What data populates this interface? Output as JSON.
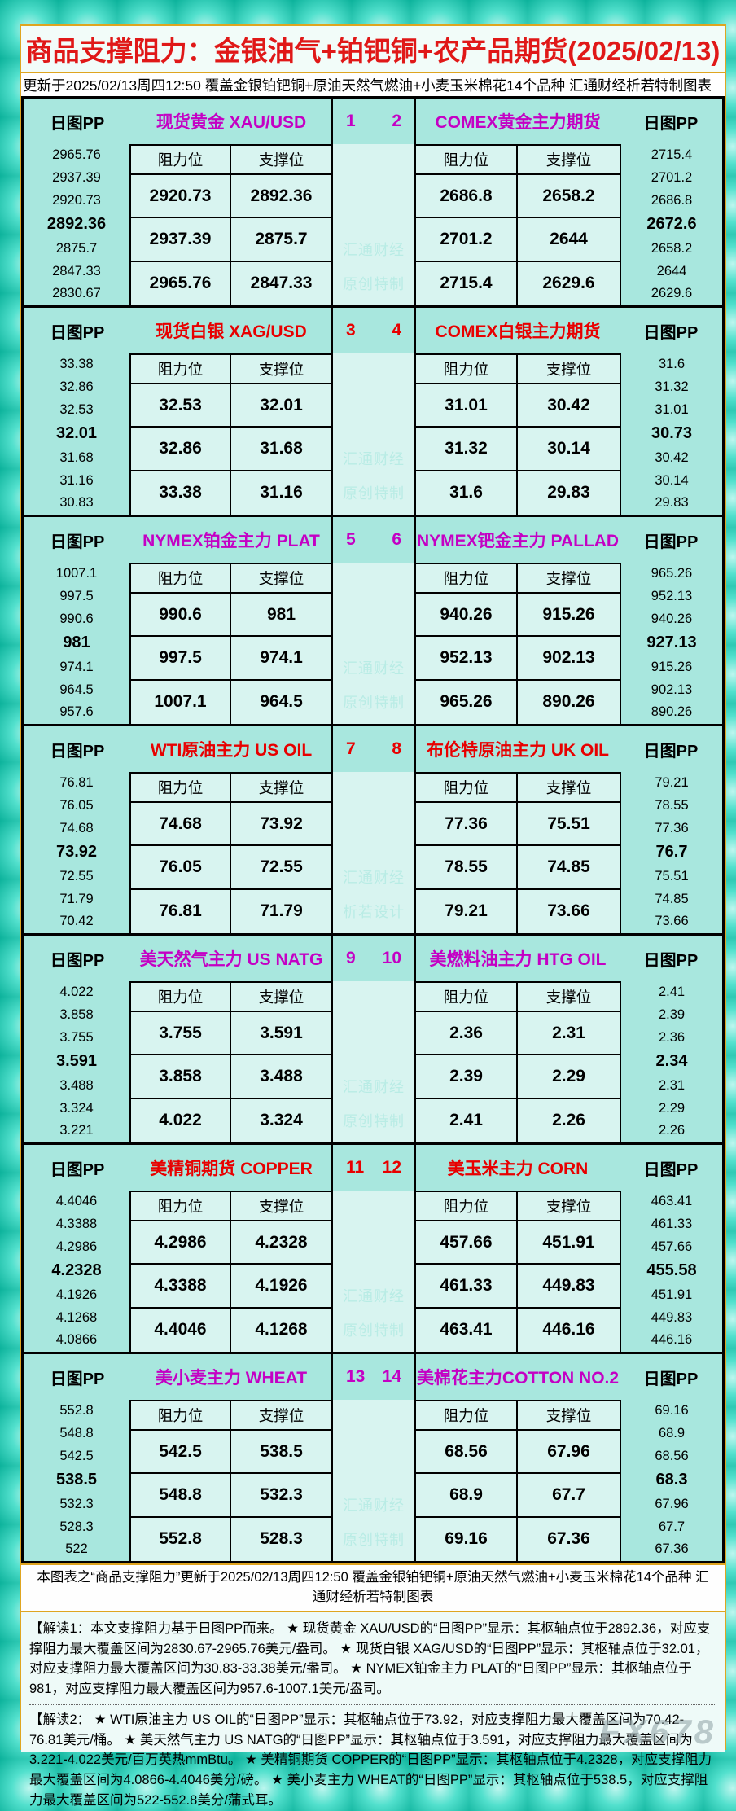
{
  "title": "商品支撑阻力：金银油气+铂钯铜+农产品期货(2025/02/13)",
  "update_line": "更新于2025/02/13周四12:50 覆盖金银铂钯铜+原油天然气燃油+小麦玉米棉花14个品种 汇通财经析若特制图表",
  "labels": {
    "pp": "日图PP",
    "resistance": "阻力位",
    "support": "支撑位"
  },
  "colors": {
    "magenta": "#c400c4",
    "red": "#e80000",
    "aqua_bg": "#a8e7de",
    "pale_bg": "#d8f4f0",
    "gold_border": "#dfa520",
    "title_red": "#e01818"
  },
  "watermark_line1": "汇通财经",
  "sections": [
    {
      "index_left": "1",
      "index_right": "2",
      "accent": "#c400c4",
      "watermark_line2": "原创特制",
      "left": {
        "title": "现货黄金 XAU/USD",
        "pp": [
          "2965.76",
          "2937.39",
          "2920.73",
          "2892.36",
          "2875.7",
          "2847.33",
          "2830.67"
        ],
        "pivot_index": 3,
        "rows": [
          [
            "2920.73",
            "2892.36"
          ],
          [
            "2937.39",
            "2875.7"
          ],
          [
            "2965.76",
            "2847.33"
          ]
        ]
      },
      "right": {
        "title": "COMEX黄金主力期货",
        "pp": [
          "2715.4",
          "2701.2",
          "2686.8",
          "2672.6",
          "2658.2",
          "2644",
          "2629.6"
        ],
        "pivot_index": 3,
        "rows": [
          [
            "2686.8",
            "2658.2"
          ],
          [
            "2701.2",
            "2644"
          ],
          [
            "2715.4",
            "2629.6"
          ]
        ]
      }
    },
    {
      "index_left": "3",
      "index_right": "4",
      "accent": "#e80000",
      "watermark_line2": "原创特制",
      "left": {
        "title": "现货白银 XAG/USD",
        "pp": [
          "33.38",
          "32.86",
          "32.53",
          "32.01",
          "31.68",
          "31.16",
          "30.83"
        ],
        "pivot_index": 3,
        "rows": [
          [
            "32.53",
            "32.01"
          ],
          [
            "32.86",
            "31.68"
          ],
          [
            "33.38",
            "31.16"
          ]
        ]
      },
      "right": {
        "title": "COMEX白银主力期货",
        "pp": [
          "31.6",
          "31.32",
          "31.01",
          "30.73",
          "30.42",
          "30.14",
          "29.83"
        ],
        "pivot_index": 3,
        "rows": [
          [
            "31.01",
            "30.42"
          ],
          [
            "31.32",
            "30.14"
          ],
          [
            "31.6",
            "29.83"
          ]
        ]
      }
    },
    {
      "index_left": "5",
      "index_right": "6",
      "accent": "#c400c4",
      "watermark_line2": "原创特制",
      "left": {
        "title": "NYMEX铂金主力 PLAT",
        "pp": [
          "1007.1",
          "997.5",
          "990.6",
          "981",
          "974.1",
          "964.5",
          "957.6"
        ],
        "pivot_index": 3,
        "rows": [
          [
            "990.6",
            "981"
          ],
          [
            "997.5",
            "974.1"
          ],
          [
            "1007.1",
            "964.5"
          ]
        ]
      },
      "right": {
        "title": "NYMEX钯金主力 PALLAD",
        "pp": [
          "965.26",
          "952.13",
          "940.26",
          "927.13",
          "915.26",
          "902.13",
          "890.26"
        ],
        "pivot_index": 3,
        "rows": [
          [
            "940.26",
            "915.26"
          ],
          [
            "952.13",
            "902.13"
          ],
          [
            "965.26",
            "890.26"
          ]
        ]
      }
    },
    {
      "index_left": "7",
      "index_right": "8",
      "accent": "#e80000",
      "watermark_line2": "析若设计",
      "left": {
        "title": "WTI原油主力 US OIL",
        "pp": [
          "76.81",
          "76.05",
          "74.68",
          "73.92",
          "72.55",
          "71.79",
          "70.42"
        ],
        "pivot_index": 3,
        "rows": [
          [
            "74.68",
            "73.92"
          ],
          [
            "76.05",
            "72.55"
          ],
          [
            "76.81",
            "71.79"
          ]
        ]
      },
      "right": {
        "title": "布伦特原油主力 UK OIL",
        "pp": [
          "79.21",
          "78.55",
          "77.36",
          "76.7",
          "75.51",
          "74.85",
          "73.66"
        ],
        "pivot_index": 3,
        "rows": [
          [
            "77.36",
            "75.51"
          ],
          [
            "78.55",
            "74.85"
          ],
          [
            "79.21",
            "73.66"
          ]
        ]
      }
    },
    {
      "index_left": "9",
      "index_right": "10",
      "accent": "#c400c4",
      "watermark_line2": "原创特制",
      "left": {
        "title": "美天然气主力 US NATG",
        "pp": [
          "4.022",
          "3.858",
          "3.755",
          "3.591",
          "3.488",
          "3.324",
          "3.221"
        ],
        "pivot_index": 3,
        "rows": [
          [
            "3.755",
            "3.591"
          ],
          [
            "3.858",
            "3.488"
          ],
          [
            "4.022",
            "3.324"
          ]
        ]
      },
      "right": {
        "title": "美燃料油主力 HTG OIL",
        "pp": [
          "2.41",
          "2.39",
          "2.36",
          "2.34",
          "2.31",
          "2.29",
          "2.26"
        ],
        "pivot_index": 3,
        "rows": [
          [
            "2.36",
            "2.31"
          ],
          [
            "2.39",
            "2.29"
          ],
          [
            "2.41",
            "2.26"
          ]
        ]
      }
    },
    {
      "index_left": "11",
      "index_right": "12",
      "accent": "#e80000",
      "watermark_line2": "原创特制",
      "left": {
        "title": "美精铜期货 COPPER",
        "pp": [
          "4.4046",
          "4.3388",
          "4.2986",
          "4.2328",
          "4.1926",
          "4.1268",
          "4.0866"
        ],
        "pivot_index": 3,
        "rows": [
          [
            "4.2986",
            "4.2328"
          ],
          [
            "4.3388",
            "4.1926"
          ],
          [
            "4.4046",
            "4.1268"
          ]
        ]
      },
      "right": {
        "title": "美玉米主力 CORN",
        "pp": [
          "463.41",
          "461.33",
          "457.66",
          "455.58",
          "451.91",
          "449.83",
          "446.16"
        ],
        "pivot_index": 3,
        "rows": [
          [
            "457.66",
            "451.91"
          ],
          [
            "461.33",
            "449.83"
          ],
          [
            "463.41",
            "446.16"
          ]
        ]
      }
    },
    {
      "index_left": "13",
      "index_right": "14",
      "accent": "#c400c4",
      "watermark_line2": "原创特制",
      "left": {
        "title": "美小麦主力 WHEAT",
        "pp": [
          "552.8",
          "548.8",
          "542.5",
          "538.5",
          "532.3",
          "528.3",
          "522"
        ],
        "pivot_index": 3,
        "rows": [
          [
            "542.5",
            "538.5"
          ],
          [
            "548.8",
            "532.3"
          ],
          [
            "552.8",
            "528.3"
          ]
        ]
      },
      "right": {
        "title": "美棉花主力COTTON NO.2",
        "pp": [
          "69.16",
          "68.9",
          "68.56",
          "68.3",
          "67.96",
          "67.7",
          "67.36"
        ],
        "pivot_index": 3,
        "rows": [
          [
            "68.56",
            "67.96"
          ],
          [
            "68.9",
            "67.7"
          ],
          [
            "69.16",
            "67.36"
          ]
        ]
      }
    }
  ],
  "footer_summary": "本图表之“商品支撑阻力”更新于2025/02/13周四12:50 覆盖金银铂钯铜+原油天然气燃油+小麦玉米棉花14个品种 汇通财经析若特制图表",
  "notes": [
    "【解读1：本文支撑阻力基于日图PP而来。 ★ 现货黄金 XAU/USD的“日图PP”显示：其枢轴点位于2892.36，对应支撑阻力最大覆盖区间为2830.67-2965.76美元/盎司。 ★ 现货白银 XAG/USD的“日图PP”显示：其枢轴点位于32.01，对应支撑阻力最大覆盖区间为30.83-33.38美元/盎司。 ★ NYMEX铂金主力 PLAT的“日图PP”显示：其枢轴点位于981，对应支撑阻力最大覆盖区间为957.6-1007.1美元/盎司。",
    "【解读2： ★ WTI原油主力 US OIL的“日图PP”显示：其枢轴点位于73.92，对应支撑阻力最大覆盖区间为70.42-76.81美元/桶。 ★ 美天然气主力 US NATG的“日图PP”显示：其枢轴点位于3.591，对应支撑阻力最大覆盖区间为3.221-4.022美元/百万英热mmBtu。 ★ 美精铜期货 COPPER的“日图PP”显示：其枢轴点位于4.2328，对应支撑阻力最大覆盖区间为4.0866-4.4046美分/磅。 ★ 美小麦主力 WHEAT的“日图PP”显示：其枢轴点位于538.5，对应支撑阻力最大覆盖区间为522-552.8美分/蒲式耳。"
  ],
  "brand_watermark": "FX678"
}
